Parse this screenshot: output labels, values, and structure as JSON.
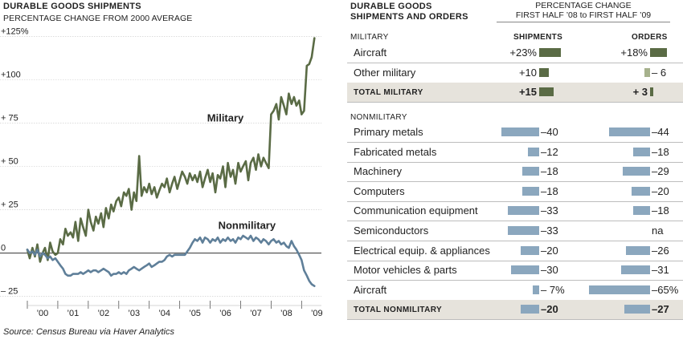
{
  "left": {
    "title": "DURABLE GOODS SHIPMENTS",
    "subtitle": "PERCENTAGE CHANGE FROM 2000 AVERAGE",
    "source": "Source: Census Bureau via Haver Analytics"
  },
  "right": {
    "title_line1": "DURABLE GOODS",
    "title_line2": "SHIPMENTS AND ORDERS",
    "pc_line1": "PERCENTAGE CHANGE",
    "pc_line2": "FIRST HALF ’08 to FIRST HALF ’09",
    "shipments_header": "SHIPMENTS",
    "orders_header": "ORDERS",
    "military_section": "MILITARY",
    "nonmilitary_section": "NONMILITARY",
    "military_color": "#5a6b45",
    "military_light_color": "#a6b18c",
    "nonmilitary_color": "#8ba7be",
    "military_rows": [
      {
        "label": "Aircraft",
        "ship": 23,
        "ship_text": "+23%",
        "ord": 18,
        "ord_text": "+18%"
      },
      {
        "label": "Other military",
        "ship": 10,
        "ship_text": "+10",
        "ord": -6,
        "ord_text": "– 6"
      },
      {
        "label": "TOTAL  MILITARY",
        "ship": 15,
        "ship_text": "+15",
        "ord": 3,
        "ord_text": "+ 3",
        "total": true
      }
    ],
    "nonmilitary_rows": [
      {
        "label": "Primary metals",
        "ship": -40,
        "ship_text": "–40",
        "ord": -44,
        "ord_text": "–44"
      },
      {
        "label": "Fabricated metals",
        "ship": -12,
        "ship_text": "–12",
        "ord": -18,
        "ord_text": "–18"
      },
      {
        "label": "Machinery",
        "ship": -18,
        "ship_text": "–18",
        "ord": -29,
        "ord_text": "–29"
      },
      {
        "label": "Computers",
        "ship": -18,
        "ship_text": "–18",
        "ord": -20,
        "ord_text": "–20"
      },
      {
        "label": "Communication equipment",
        "ship": -33,
        "ship_text": "–33",
        "ord": -18,
        "ord_text": "–18"
      },
      {
        "label": "Semiconductors",
        "ship": -33,
        "ship_text": "–33",
        "ord": null,
        "ord_text": "na"
      },
      {
        "label": "Electrical equip. & appliances",
        "ship": -20,
        "ship_text": "–20",
        "ord": -26,
        "ord_text": "–26"
      },
      {
        "label": "Motor vehicles & parts",
        "ship": -30,
        "ship_text": "–30",
        "ord": -31,
        "ord_text": "–31"
      },
      {
        "label": "Aircraft",
        "ship": -7,
        "ship_text": "–  7%",
        "ord": -65,
        "ord_text": "–65%"
      },
      {
        "label": "TOTAL NONMILITARY",
        "ship": -20,
        "ship_text": "–20",
        "ord": -27,
        "ord_text": "–27",
        "total": true
      }
    ]
  },
  "chart_data": {
    "type": "line",
    "title": "DURABLE GOODS SHIPMENTS",
    "subtitle": "PERCENTAGE CHANGE FROM 2000 AVERAGE",
    "xlabel": "",
    "ylabel": "",
    "xlim": [
      2000,
      2009.65
    ],
    "ylim": [
      -27,
      127
    ],
    "y_ticks": [
      -25,
      0,
      25,
      50,
      75,
      100,
      125
    ],
    "y_tick_labels": [
      "– 25",
      "0",
      "+ 25",
      "+ 50",
      "+ 75",
      "+100",
      "+125%"
    ],
    "x_tick_labels": [
      "’00",
      "’01",
      "’02",
      "’03",
      "’04",
      "’05",
      "’06",
      "’07",
      "’08",
      "’09"
    ],
    "x_tick_positions": [
      2000.5,
      2001.5,
      2002.5,
      2003.5,
      2004.5,
      2005.5,
      2006.5,
      2007.5,
      2008.5,
      2009.5
    ],
    "legend": "inline labels",
    "series": [
      {
        "name": "Military",
        "color": "#5a6b45",
        "x": [
          2000,
          2000.08,
          2000.17,
          2000.25,
          2000.33,
          2000.42,
          2000.5,
          2000.58,
          2000.67,
          2000.75,
          2000.83,
          2000.92,
          2001,
          2001.08,
          2001.17,
          2001.25,
          2001.33,
          2001.42,
          2001.5,
          2001.58,
          2001.67,
          2001.75,
          2001.83,
          2001.92,
          2002,
          2002.08,
          2002.17,
          2002.25,
          2002.33,
          2002.42,
          2002.5,
          2002.58,
          2002.67,
          2002.75,
          2002.83,
          2002.92,
          2003,
          2003.08,
          2003.17,
          2003.25,
          2003.33,
          2003.42,
          2003.5,
          2003.58,
          2003.67,
          2003.75,
          2003.83,
          2003.92,
          2004,
          2004.08,
          2004.17,
          2004.25,
          2004.33,
          2004.42,
          2004.5,
          2004.58,
          2004.67,
          2004.75,
          2004.83,
          2004.92,
          2005,
          2005.08,
          2005.17,
          2005.25,
          2005.33,
          2005.42,
          2005.5,
          2005.58,
          2005.67,
          2005.75,
          2005.83,
          2005.92,
          2006,
          2006.08,
          2006.17,
          2006.25,
          2006.33,
          2006.42,
          2006.5,
          2006.58,
          2006.67,
          2006.75,
          2006.83,
          2006.92,
          2007,
          2007.08,
          2007.17,
          2007.25,
          2007.33,
          2007.42,
          2007.5,
          2007.58,
          2007.67,
          2007.75,
          2007.83,
          2007.92,
          2008,
          2008.08,
          2008.17,
          2008.25,
          2008.33,
          2008.42,
          2008.5,
          2008.58,
          2008.67,
          2008.75,
          2008.83,
          2008.92,
          2009,
          2009.08,
          2009.17,
          2009.25,
          2009.33,
          2009.42
        ],
        "values": [
          2,
          -3,
          3,
          -2,
          5,
          -5,
          0,
          3,
          -4,
          6,
          1,
          -1,
          0,
          8,
          5,
          14,
          10,
          12,
          9,
          18,
          7,
          20,
          15,
          10,
          25,
          18,
          13,
          21,
          17,
          23,
          15,
          26,
          20,
          28,
          24,
          30,
          32,
          27,
          35,
          33,
          37,
          25,
          35,
          30,
          56,
          33,
          38,
          35,
          40,
          34,
          38,
          32,
          36,
          40,
          38,
          43,
          35,
          40,
          44,
          37,
          42,
          47,
          44,
          40,
          46,
          42,
          45,
          41,
          47,
          38,
          43,
          48,
          41,
          46,
          35,
          45,
          43,
          50,
          38,
          52,
          44,
          48,
          40,
          52,
          47,
          50,
          53,
          42,
          52,
          55,
          48,
          57,
          50,
          55,
          52,
          49,
          80,
          82,
          86,
          77,
          90,
          85,
          80,
          92,
          86,
          90,
          85,
          88,
          80,
          82,
          108,
          109,
          113,
          124
        ]
      },
      {
        "name": "Nonmilitary",
        "color": "#5f7f99",
        "x": [
          2000,
          2000.08,
          2000.17,
          2000.25,
          2000.33,
          2000.42,
          2000.5,
          2000.58,
          2000.67,
          2000.75,
          2000.83,
          2000.92,
          2001,
          2001.08,
          2001.17,
          2001.25,
          2001.33,
          2001.42,
          2001.5,
          2001.58,
          2001.67,
          2001.75,
          2001.83,
          2001.92,
          2002,
          2002.08,
          2002.17,
          2002.25,
          2002.33,
          2002.42,
          2002.5,
          2002.58,
          2002.67,
          2002.75,
          2002.83,
          2002.92,
          2003,
          2003.08,
          2003.17,
          2003.25,
          2003.33,
          2003.42,
          2003.5,
          2003.58,
          2003.67,
          2003.75,
          2003.83,
          2003.92,
          2004,
          2004.08,
          2004.17,
          2004.25,
          2004.33,
          2004.42,
          2004.5,
          2004.58,
          2004.67,
          2004.75,
          2004.83,
          2004.92,
          2005,
          2005.08,
          2005.17,
          2005.25,
          2005.33,
          2005.42,
          2005.5,
          2005.58,
          2005.67,
          2005.75,
          2005.83,
          2005.92,
          2006,
          2006.08,
          2006.17,
          2006.25,
          2006.33,
          2006.42,
          2006.5,
          2006.58,
          2006.67,
          2006.75,
          2006.83,
          2006.92,
          2007,
          2007.08,
          2007.17,
          2007.25,
          2007.33,
          2007.42,
          2007.5,
          2007.58,
          2007.67,
          2007.75,
          2007.83,
          2007.92,
          2008,
          2008.08,
          2008.17,
          2008.25,
          2008.33,
          2008.42,
          2008.5,
          2008.58,
          2008.67,
          2008.75,
          2008.83,
          2008.92,
          2009,
          2009.08,
          2009.17,
          2009.25,
          2009.33,
          2009.42
        ],
        "values": [
          2,
          0,
          1,
          -1,
          2,
          -2,
          0,
          -1,
          -3,
          -2,
          -4,
          -3,
          -5,
          -7,
          -9,
          -12,
          -13,
          -13,
          -12,
          -12,
          -12,
          -11,
          -12,
          -11,
          -10,
          -11,
          -10,
          -10,
          -11,
          -10,
          -9,
          -10,
          -11,
          -13,
          -12,
          -12,
          -11,
          -12,
          -11,
          -12,
          -10,
          -9,
          -8,
          -9,
          -10,
          -9,
          -8,
          -7,
          -6,
          -8,
          -7,
          -6,
          -5,
          -5,
          -4,
          -2,
          -1,
          -2,
          -1,
          -1,
          -1,
          -1,
          -1,
          1,
          3,
          6,
          8,
          7,
          9,
          6,
          9,
          8,
          6,
          8,
          7,
          9,
          6,
          8,
          7,
          9,
          7,
          8,
          6,
          9,
          8,
          10,
          9,
          8,
          10,
          7,
          9,
          8,
          6,
          8,
          7,
          5,
          7,
          8,
          6,
          7,
          5,
          6,
          4,
          3,
          7,
          4,
          2,
          -1,
          -4,
          -10,
          -13,
          -16,
          -18,
          -19
        ]
      }
    ],
    "annotations": [
      {
        "text": "Military",
        "x": 2007.1,
        "y": 76
      },
      {
        "text": "Nonmilitary",
        "x": 2008.15,
        "y": 14
      }
    ]
  }
}
